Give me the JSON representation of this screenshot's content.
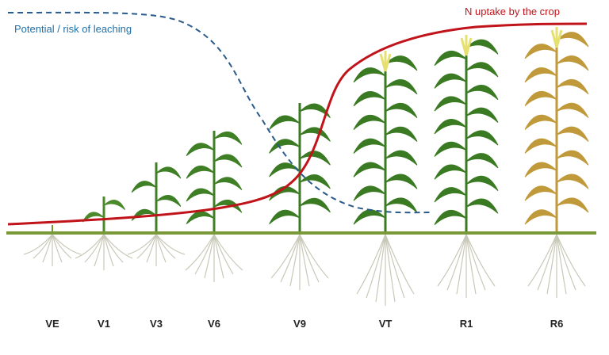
{
  "curves": {
    "leaching": "Potential / risk of leaching",
    "uptake": "N uptake by the crop"
  },
  "stages": [
    "VE",
    "V1",
    "V3",
    "V6",
    "V9",
    "VT",
    "R1",
    "R6"
  ]
}
